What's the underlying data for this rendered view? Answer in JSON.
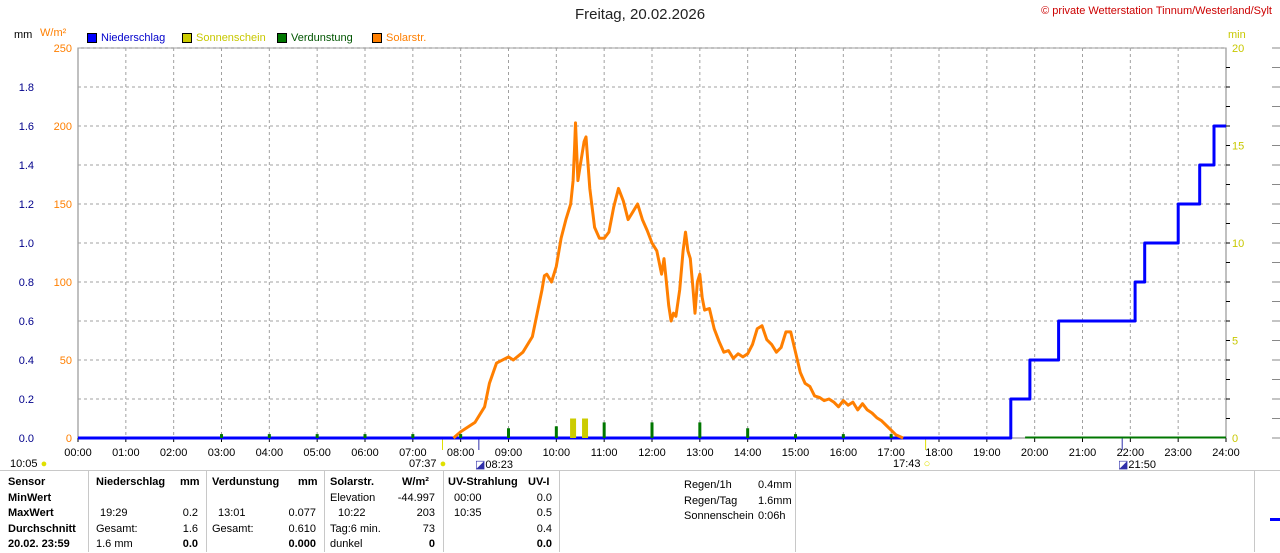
{
  "title": "Freitag, 20.02.2026",
  "copyright": "© private Wetterstation Tinnum/Westerland/Sylt",
  "units": {
    "left1": "mm",
    "left2": "W/m²",
    "right": "min"
  },
  "legend": [
    {
      "label": "Niederschlag",
      "color": "#0000ff",
      "text_color": "#0000cc"
    },
    {
      "label": "Sonnenschein",
      "color": "#cccc00",
      "text_color": "#c8c800"
    },
    {
      "label": "Verdunstung",
      "color": "#007700",
      "text_color": "#005500"
    },
    {
      "label": "Solarstr.",
      "color": "#ff7f00",
      "text_color": "#ff7f00"
    }
  ],
  "markers": {
    "moon_rise": "10:05",
    "sunrise": "07:37",
    "moon_set": "08:23",
    "sunset": "17:43",
    "moon_set2": "21:50"
  },
  "chart_data": {
    "type": "line",
    "title": "Freitag, 20.02.2026",
    "x_ticks": [
      "00:00",
      "01:00",
      "02:00",
      "03:00",
      "04:00",
      "05:00",
      "06:00",
      "07:00",
      "08:00",
      "09:00",
      "10:00",
      "11:00",
      "12:00",
      "13:00",
      "14:00",
      "15:00",
      "16:00",
      "17:00",
      "18:00",
      "19:00",
      "20:00",
      "21:00",
      "22:00",
      "23:00",
      "24:00"
    ],
    "x_range_hours": [
      0,
      24
    ],
    "axis_left_mm": {
      "ticks": [
        "0.0",
        "0.2",
        "0.4",
        "0.6",
        "0.8",
        "1.0",
        "1.2",
        "1.4",
        "1.6",
        "1.8"
      ],
      "range": [
        0,
        2.0
      ]
    },
    "axis_left_wm2": {
      "ticks": [
        "0",
        "50",
        "100",
        "150",
        "200",
        "250"
      ],
      "range": [
        0,
        250
      ]
    },
    "axis_right_min": {
      "ticks": [
        "0",
        "5",
        "10",
        "15",
        "20"
      ],
      "range": [
        0,
        20
      ]
    },
    "grid": true,
    "series": [
      {
        "name": "Niederschlag",
        "axis": "mm",
        "step": true,
        "points": [
          [
            0,
            0
          ],
          [
            19.5,
            0
          ],
          [
            19.5,
            0.2
          ],
          [
            19.9,
            0.2
          ],
          [
            19.9,
            0.4
          ],
          [
            20.5,
            0.4
          ],
          [
            20.5,
            0.6
          ],
          [
            22.1,
            0.6
          ],
          [
            22.1,
            0.8
          ],
          [
            22.3,
            0.8
          ],
          [
            22.3,
            1.0
          ],
          [
            23.0,
            1.0
          ],
          [
            23.0,
            1.2
          ],
          [
            23.45,
            1.2
          ],
          [
            23.45,
            1.4
          ],
          [
            23.75,
            1.4
          ],
          [
            23.75,
            1.6
          ],
          [
            24,
            1.6
          ]
        ]
      },
      {
        "name": "Solarstr.",
        "axis": "W/m²",
        "points": [
          [
            7.85,
            0
          ],
          [
            8.0,
            4
          ],
          [
            8.3,
            10
          ],
          [
            8.5,
            20
          ],
          [
            8.6,
            35
          ],
          [
            8.75,
            48
          ],
          [
            9.0,
            52
          ],
          [
            9.1,
            50
          ],
          [
            9.3,
            55
          ],
          [
            9.5,
            65
          ],
          [
            9.6,
            80
          ],
          [
            9.7,
            95
          ],
          [
            9.75,
            104
          ],
          [
            9.8,
            105
          ],
          [
            9.9,
            100
          ],
          [
            10.0,
            110
          ],
          [
            10.1,
            128
          ],
          [
            10.2,
            140
          ],
          [
            10.3,
            150
          ],
          [
            10.35,
            165
          ],
          [
            10.38,
            185
          ],
          [
            10.4,
            202
          ],
          [
            10.45,
            165
          ],
          [
            10.5,
            175
          ],
          [
            10.58,
            190
          ],
          [
            10.62,
            193
          ],
          [
            10.7,
            160
          ],
          [
            10.8,
            135
          ],
          [
            10.9,
            128
          ],
          [
            11.0,
            128
          ],
          [
            11.1,
            132
          ],
          [
            11.2,
            148
          ],
          [
            11.3,
            160
          ],
          [
            11.4,
            152
          ],
          [
            11.5,
            140
          ],
          [
            11.6,
            145
          ],
          [
            11.7,
            150
          ],
          [
            11.8,
            140
          ],
          [
            11.9,
            133
          ],
          [
            12.0,
            125
          ],
          [
            12.1,
            120
          ],
          [
            12.2,
            105
          ],
          [
            12.25,
            115
          ],
          [
            12.3,
            100
          ],
          [
            12.35,
            85
          ],
          [
            12.4,
            75
          ],
          [
            12.45,
            80
          ],
          [
            12.5,
            78
          ],
          [
            12.58,
            95
          ],
          [
            12.65,
            120
          ],
          [
            12.7,
            132
          ],
          [
            12.75,
            120
          ],
          [
            12.8,
            115
          ],
          [
            12.85,
            98
          ],
          [
            12.9,
            80
          ],
          [
            12.95,
            100
          ],
          [
            13.0,
            105
          ],
          [
            13.05,
            90
          ],
          [
            13.1,
            82
          ],
          [
            13.2,
            83
          ],
          [
            13.3,
            70
          ],
          [
            13.4,
            62
          ],
          [
            13.5,
            55
          ],
          [
            13.6,
            56
          ],
          [
            13.7,
            51
          ],
          [
            13.8,
            54
          ],
          [
            13.9,
            52
          ],
          [
            14.0,
            54
          ],
          [
            14.1,
            60
          ],
          [
            14.2,
            70
          ],
          [
            14.3,
            72
          ],
          [
            14.4,
            63
          ],
          [
            14.5,
            60
          ],
          [
            14.6,
            55
          ],
          [
            14.7,
            58
          ],
          [
            14.8,
            68
          ],
          [
            14.9,
            68
          ],
          [
            15.0,
            55
          ],
          [
            15.1,
            42
          ],
          [
            15.2,
            35
          ],
          [
            15.3,
            33
          ],
          [
            15.4,
            27
          ],
          [
            15.5,
            26
          ],
          [
            15.6,
            24
          ],
          [
            15.7,
            25
          ],
          [
            15.8,
            23
          ],
          [
            15.9,
            20
          ],
          [
            16.0,
            24
          ],
          [
            16.1,
            21
          ],
          [
            16.2,
            23
          ],
          [
            16.3,
            18
          ],
          [
            16.4,
            22
          ],
          [
            16.5,
            18
          ],
          [
            16.6,
            16
          ],
          [
            16.7,
            13
          ],
          [
            16.8,
            11
          ],
          [
            16.9,
            8
          ],
          [
            17.0,
            5
          ],
          [
            17.1,
            2
          ],
          [
            17.25,
            0
          ]
        ]
      },
      {
        "name": "Sonnenschein",
        "axis": "min",
        "bars": [
          [
            10.35,
            1.0
          ],
          [
            10.6,
            1.0
          ]
        ]
      },
      {
        "name": "Verdunstung",
        "axis": "mm",
        "baseline_after_hour": 19.8,
        "spikes": [
          [
            3,
            0.02
          ],
          [
            4,
            0.02
          ],
          [
            5,
            0.02
          ],
          [
            6,
            0.02
          ],
          [
            7,
            0.02
          ],
          [
            8,
            0.02
          ],
          [
            9,
            0.05
          ],
          [
            10,
            0.06
          ],
          [
            11,
            0.08
          ],
          [
            12,
            0.08
          ],
          [
            13,
            0.08
          ],
          [
            14,
            0.05
          ],
          [
            15,
            0.02
          ],
          [
            16,
            0.02
          ],
          [
            17,
            0.02
          ]
        ]
      }
    ]
  },
  "table": {
    "row_labels": [
      "Sensor",
      "MinWert",
      "MaxWert",
      "Durchschnitt",
      "20.02. 23:59"
    ],
    "niederschlag": {
      "header": "Niederschlag",
      "unit": "mm",
      "max_time": "19:29",
      "max_val": "0.2",
      "avg_label": "Gesamt:",
      "avg_val": "1.6",
      "last_val": "1.6 mm",
      "last_val2": "0.0"
    },
    "verdunstung": {
      "header": "Verdunstung",
      "unit": "mm",
      "max_time": "13:01",
      "max_val": "0.077",
      "avg_label": "Gesamt:",
      "avg_val": "0.610",
      "last_val": "0.000"
    },
    "solar": {
      "header": "Solarstr.",
      "unit": "W/m²",
      "r1_label": "Elevation",
      "r1_val": "-44.997",
      "r2_time": "10:22",
      "r2_val": "203",
      "r3_label": "Tag:6 min.",
      "r3_val": "73",
      "r4_label": "dunkel",
      "r4_val": "0"
    },
    "uv": {
      "header": "UV-Strahlung",
      "unit": "UV-I",
      "min_time": "00:00",
      "min_val": "0.0",
      "max_time": "10:35",
      "max_val": "0.5",
      "avg_val": "0.4",
      "last_val": "0.0"
    },
    "regen": {
      "l1": "Regen/1h",
      "v1": "0.4mm",
      "l2": "Regen/Tag",
      "v2": "1.6mm",
      "l3": "Sonnenschein",
      "v3": "0:06h"
    }
  }
}
